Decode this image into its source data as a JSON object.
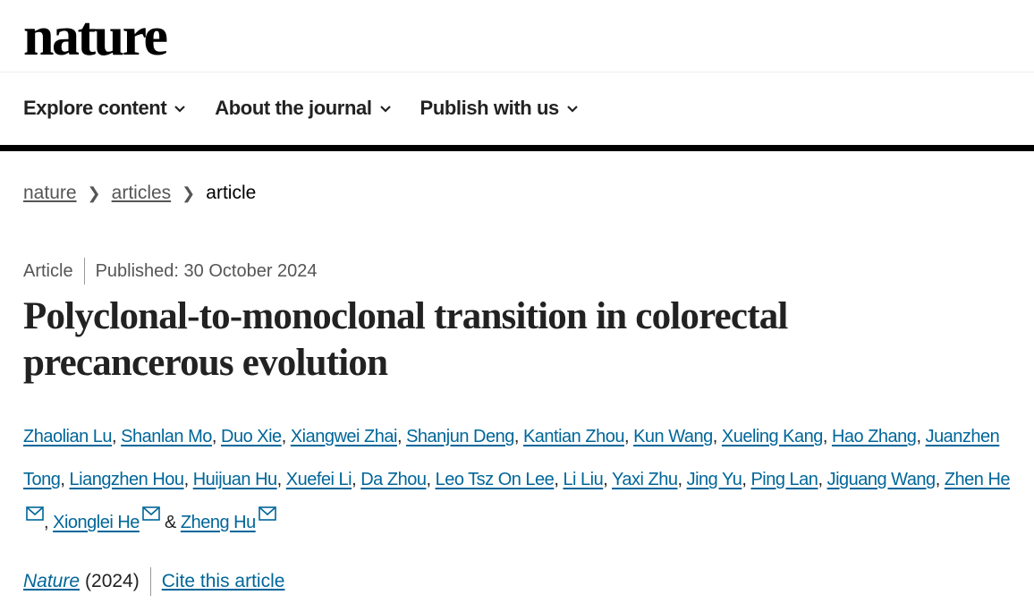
{
  "header": {
    "logo": "nature"
  },
  "nav": [
    {
      "label": "Explore content"
    },
    {
      "label": "About the journal"
    },
    {
      "label": "Publish with us"
    }
  ],
  "breadcrumb": [
    {
      "label": "nature"
    },
    {
      "label": "articles"
    },
    {
      "label": "article"
    }
  ],
  "article": {
    "type": "Article",
    "published": "Published: 30 October 2024",
    "title": "Polyclonal-to-monoclonal transition in colorectal precancerous evolution",
    "authors": [
      "Zhaolian Lu",
      "Shanlan Mo",
      "Duo Xie",
      "Xiangwei Zhai",
      "Shanjun Deng",
      "Kantian Zhou",
      "Kun Wang",
      "Xueling Kang",
      "Hao Zhang",
      "Juanzhen Tong",
      "Liangzhen Hou",
      "Huijuan Hu",
      "Xuefei Li",
      "Da Zhou",
      "Leo Tsz On Lee",
      "Li Liu",
      "Yaxi Zhu",
      "Jing Yu",
      "Ping Lan",
      "Jiguang Wang",
      "Zhen He",
      "Xionglei He",
      "Zheng Hu"
    ],
    "corresponding": [
      "Zhen He",
      "Xionglei He",
      "Zheng Hu"
    ],
    "journal": "Nature",
    "year": "(2024)",
    "cite_label": "Cite this article"
  },
  "colors": {
    "link": "#006699",
    "text": "#222222"
  }
}
